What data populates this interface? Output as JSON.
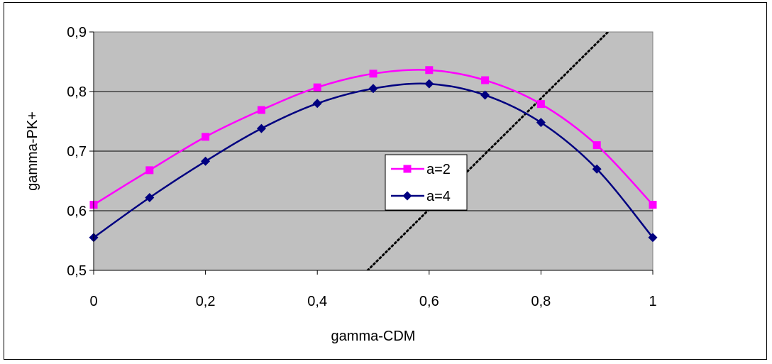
{
  "chart_data": {
    "type": "line",
    "title": "",
    "xlabel": "gamma-CDM",
    "ylabel": "gamma-PK+",
    "xlim": [
      0,
      1
    ],
    "ylim": [
      0.5,
      0.9
    ],
    "x_ticks": [
      "0",
      "0,2",
      "0,4",
      "0,6",
      "0,8",
      "1"
    ],
    "y_ticks": [
      "0,5",
      "0,6",
      "0,7",
      "0,8",
      "0,9"
    ],
    "grid": "horizontal",
    "background": "#c0c0c0",
    "legend_position": "center-right",
    "series": [
      {
        "name": "a=2",
        "color": "#ff00ff",
        "marker": "square",
        "x": [
          0,
          0.1,
          0.2,
          0.3,
          0.4,
          0.5,
          0.6,
          0.7,
          0.8,
          0.9,
          1.0
        ],
        "y": [
          0.61,
          0.668,
          0.724,
          0.769,
          0.807,
          0.83,
          0.836,
          0.819,
          0.779,
          0.71,
          0.61
        ]
      },
      {
        "name": "a=4",
        "color": "#000080",
        "marker": "diamond",
        "x": [
          0,
          0.1,
          0.2,
          0.3,
          0.4,
          0.5,
          0.6,
          0.7,
          0.8,
          0.9,
          1.0
        ],
        "y": [
          0.555,
          0.622,
          0.683,
          0.738,
          0.78,
          0.805,
          0.813,
          0.794,
          0.748,
          0.67,
          0.555
        ]
      }
    ],
    "reference_line": {
      "style": "dotted",
      "color": "#000000",
      "x": [
        0.49,
        0.92
      ],
      "y": [
        0.5,
        0.9
      ]
    }
  }
}
